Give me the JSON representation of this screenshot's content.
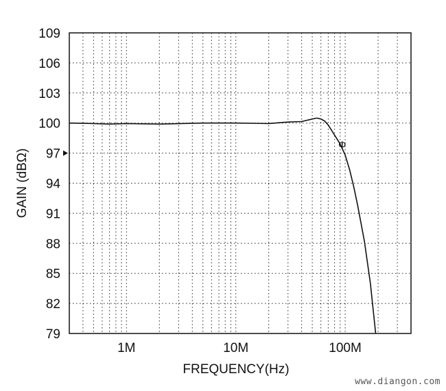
{
  "chart_data": {
    "type": "line",
    "xlabel": "FREQUENCY(Hz)",
    "ylabel": "GAIN (dBΩ)",
    "x_scale": "log",
    "xlim": [
      300000,
      400000000
    ],
    "ylim": [
      79,
      109
    ],
    "x_ticks": [
      {
        "value": 1000000,
        "label": "1M"
      },
      {
        "value": 10000000,
        "label": "10M"
      },
      {
        "value": 100000000,
        "label": "100M"
      }
    ],
    "y_ticks": [
      109,
      106,
      103,
      100,
      97,
      94,
      91,
      88,
      85,
      82,
      79
    ],
    "grid": true,
    "annotations": [
      {
        "text": "Ф"
      }
    ],
    "series": [
      {
        "x": [
          300000,
          500000,
          700000,
          1000000,
          2000000,
          5000000,
          10000000,
          20000000,
          30000000,
          40000000,
          50000000,
          55000000,
          60000000,
          65000000,
          70000000,
          80000000,
          90000000,
          100000000,
          110000000,
          120000000,
          130000000,
          150000000,
          170000000,
          190000000
        ],
        "values": [
          100.0,
          99.95,
          99.9,
          99.95,
          99.9,
          100.0,
          100.0,
          99.95,
          100.1,
          100.15,
          100.4,
          100.5,
          100.4,
          100.2,
          99.8,
          98.8,
          97.9,
          96.8,
          95.3,
          93.6,
          91.8,
          88.2,
          84.0,
          79.0
        ]
      }
    ]
  },
  "watermark": "www.diangon.com",
  "colors": {
    "line": "#111111",
    "grid": "#222222",
    "frame": "#111111"
  }
}
